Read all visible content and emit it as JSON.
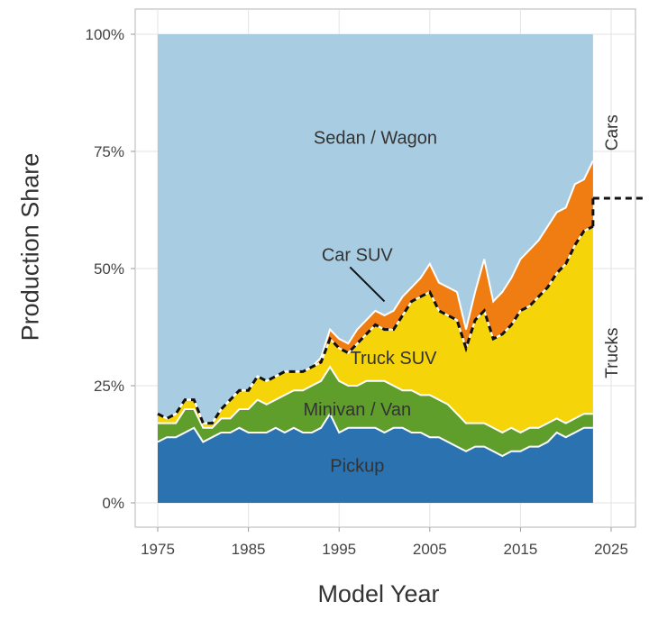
{
  "chart_data": {
    "type": "area",
    "stacked": true,
    "title": "",
    "xlabel": "Model Year",
    "ylabel": "Production Share",
    "xlim": [
      1975,
      2027
    ],
    "ylim": [
      0,
      100
    ],
    "x_ticks": [
      "1975",
      "1985",
      "1995",
      "2005",
      "2015",
      "2025"
    ],
    "y_ticks": [
      "0%",
      "25%",
      "50%",
      "75%",
      "100%"
    ],
    "grid": true,
    "x": [
      1975,
      1976,
      1977,
      1978,
      1979,
      1980,
      1981,
      1982,
      1983,
      1984,
      1985,
      1986,
      1987,
      1988,
      1989,
      1990,
      1991,
      1992,
      1993,
      1994,
      1995,
      1996,
      1997,
      1998,
      1999,
      2000,
      2001,
      2002,
      2003,
      2004,
      2005,
      2006,
      2007,
      2008,
      2009,
      2010,
      2011,
      2012,
      2013,
      2014,
      2015,
      2016,
      2017,
      2018,
      2019,
      2020,
      2021,
      2022,
      2023
    ],
    "series": [
      {
        "name": "Pickup",
        "color": "#2a72b0",
        "values": [
          13,
          14,
          14,
          15,
          16,
          13,
          14,
          15,
          15,
          16,
          15,
          15,
          15,
          16,
          15,
          16,
          15,
          15,
          16,
          19,
          15,
          16,
          16,
          16,
          16,
          15,
          16,
          16,
          15,
          15,
          14,
          14,
          13,
          12,
          11,
          12,
          12,
          11,
          10,
          11,
          11,
          12,
          12,
          13,
          15,
          14,
          15,
          16,
          16
        ]
      },
      {
        "name": "Minivan/Van",
        "color": "#5f9e2b",
        "values": [
          4,
          3,
          3,
          5,
          4,
          3,
          2,
          3,
          3,
          4,
          5,
          7,
          6,
          6,
          8,
          8,
          9,
          10,
          10,
          10,
          11,
          9,
          9,
          10,
          10,
          11,
          9,
          8,
          9,
          8,
          9,
          8,
          8,
          7,
          6,
          5,
          5,
          5,
          5,
          5,
          4,
          4,
          4,
          4,
          3,
          3,
          3,
          3,
          3
        ]
      },
      {
        "name": "Truck SUV",
        "color": "#f6d40a",
        "values": [
          2,
          1,
          2,
          2,
          2,
          1,
          1,
          2,
          4,
          4,
          4,
          5,
          5,
          5,
          5,
          4,
          4,
          4,
          4,
          6,
          7,
          7,
          9,
          10,
          12,
          11,
          12,
          16,
          19,
          21,
          22,
          19,
          19,
          20,
          16,
          22,
          24,
          19,
          21,
          22,
          26,
          26,
          28,
          29,
          31,
          34,
          37,
          39,
          40
        ]
      },
      {
        "name": "Car SUV",
        "color": "#f07d12",
        "values": [
          0,
          0,
          0,
          0,
          0,
          0,
          0,
          0,
          0,
          0,
          0,
          0,
          0,
          0,
          0,
          0,
          0,
          0,
          1,
          2,
          2,
          2,
          3,
          3,
          3,
          3,
          4,
          4,
          3,
          4,
          6,
          6,
          6,
          6,
          4,
          6,
          11,
          8,
          9,
          10,
          11,
          12,
          12,
          13,
          13,
          12,
          13,
          11,
          14
        ]
      },
      {
        "name": "Sedan / Wagon",
        "color": "#a8cde3",
        "values": [
          81,
          82,
          81,
          78,
          78,
          83,
          83,
          80,
          78,
          76,
          76,
          73,
          74,
          73,
          72,
          72,
          72,
          71,
          69,
          63,
          65,
          66,
          63,
          61,
          59,
          60,
          59,
          56,
          54,
          52,
          49,
          53,
          54,
          55,
          63,
          55,
          48,
          57,
          55,
          52,
          48,
          46,
          44,
          41,
          38,
          37,
          32,
          31,
          27
        ]
      }
    ],
    "boundary_line": {
      "style": "dashed",
      "color": "#111111",
      "values": [
        19,
        18,
        19,
        22,
        22,
        17,
        17,
        20,
        22,
        24,
        24,
        27,
        26,
        27,
        28,
        28,
        28,
        29,
        30,
        35,
        33,
        32,
        34,
        36,
        38,
        37,
        37,
        40,
        43,
        44,
        45,
        41,
        40,
        39,
        33,
        39,
        41,
        35,
        36,
        38,
        41,
        42,
        44,
        46,
        49,
        51,
        55,
        58,
        59
      ],
      "extend_to": 2027,
      "extend_value": 65
    },
    "annotations": [
      {
        "text": "Sedan / Wagon",
        "x": 1999,
        "y": 78
      },
      {
        "text": "Car SUV",
        "x": 1997,
        "y": 53,
        "arrow_to_x": 2000,
        "arrow_to_y": 43
      },
      {
        "text": "Truck SUV",
        "x": 2001,
        "y": 31
      },
      {
        "text": "Minivan / Van",
        "x": 1997,
        "y": 20
      },
      {
        "text": "Pickup",
        "x": 1997,
        "y": 8
      }
    ],
    "side_labels": [
      {
        "text": "Cars",
        "y": 79
      },
      {
        "text": "Trucks",
        "y": 32
      }
    ],
    "colors": {
      "grid": "#e3e3e3",
      "axis_text": "#444444",
      "series_edge": "#ffffff"
    }
  }
}
